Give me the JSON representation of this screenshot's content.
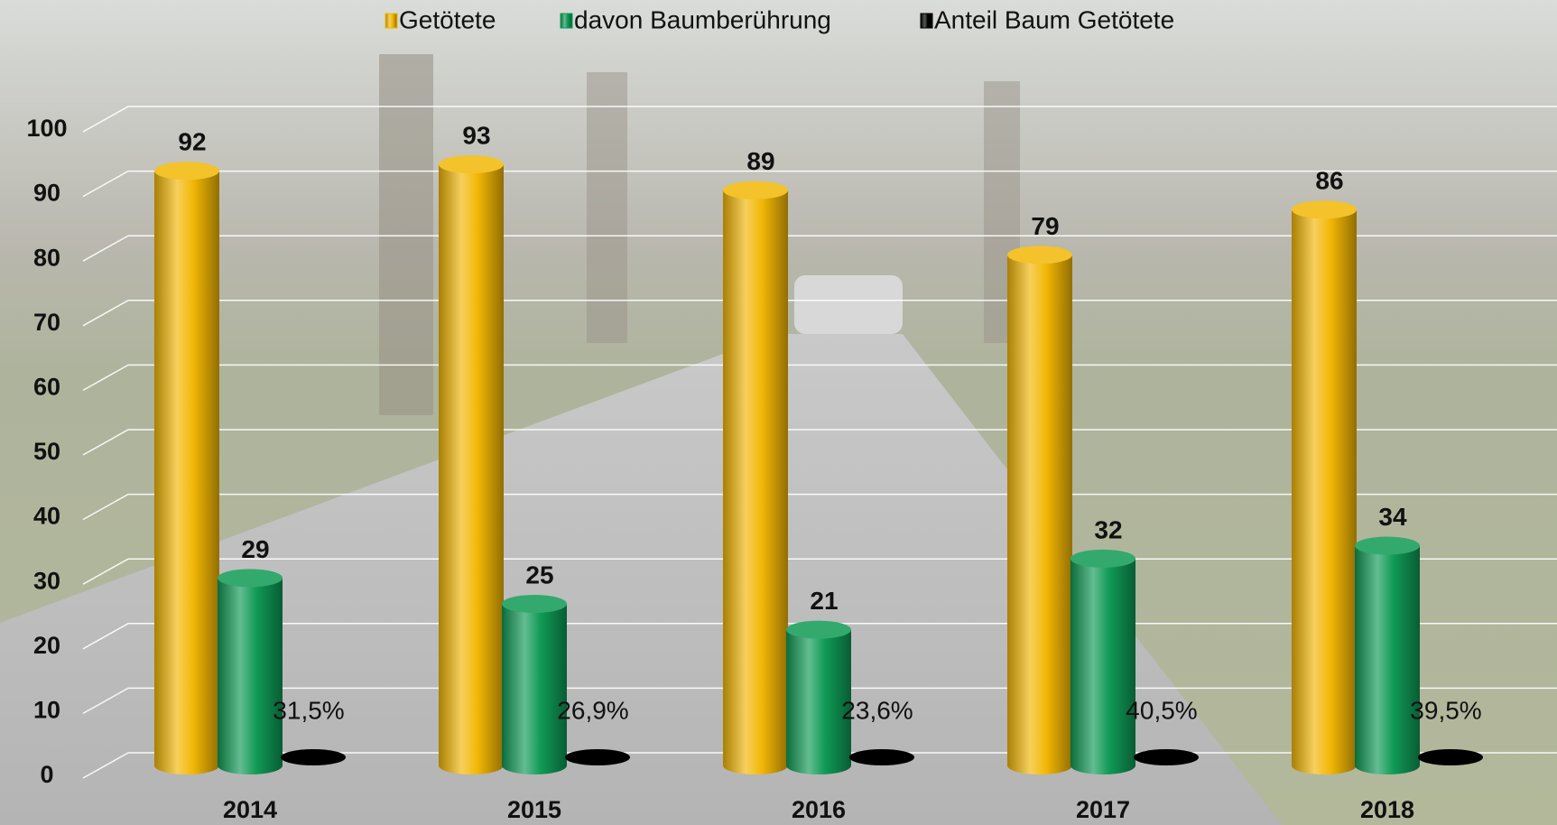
{
  "chart_data": {
    "type": "bar3d",
    "categories": [
      "2014",
      "2015",
      "2016",
      "2017",
      "2018"
    ],
    "series": [
      {
        "name": "Getötete",
        "color": "#f2b705",
        "values": [
          92,
          93,
          89,
          79,
          86
        ]
      },
      {
        "name": "davon Baumberührung",
        "color": "#0f9a55",
        "values": [
          29,
          25,
          21,
          32,
          34
        ]
      },
      {
        "name": "Anteil Baum Getötete",
        "color": "#000000",
        "values": [
          0.315,
          0.269,
          0.236,
          0.405,
          0.395
        ],
        "value_labels": [
          "31,5%",
          "26,9%",
          "23,6%",
          "40,5%",
          "39,5%"
        ]
      }
    ],
    "ylim": [
      0,
      100
    ],
    "yticks": [
      0,
      10,
      20,
      30,
      40,
      50,
      60,
      70,
      80,
      90,
      100
    ],
    "grid": true
  }
}
